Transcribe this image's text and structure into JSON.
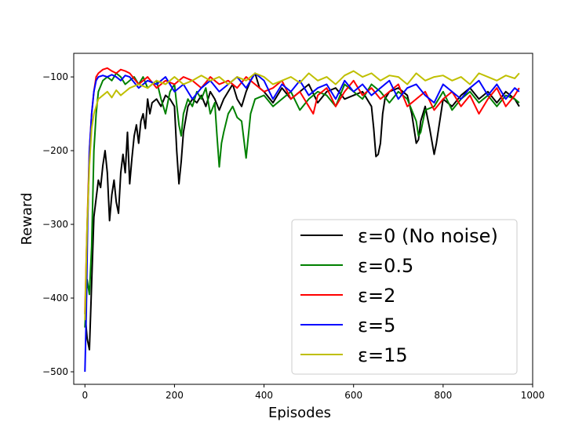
{
  "chart_data": {
    "type": "line",
    "title": "",
    "xlabel": "Episodes",
    "ylabel": "Reward",
    "xlim": [
      -25,
      1000
    ],
    "ylim": [
      -517,
      -68
    ],
    "x_ticks": [
      0,
      200,
      400,
      600,
      800,
      1000
    ],
    "x_tick_labels": [
      "0",
      "200",
      "400",
      "600",
      "800",
      "1000"
    ],
    "y_ticks": [
      -500,
      -400,
      -300,
      -200,
      -100
    ],
    "y_tick_labels": [
      "−500",
      "−400",
      "−300",
      "−200",
      "−100"
    ],
    "grid": false,
    "legend_position": "lower-right",
    "series": [
      {
        "name": "ε=0 (No noise)",
        "color": "#000000",
        "x": [
          0,
          5,
          10,
          15,
          20,
          25,
          30,
          35,
          40,
          45,
          50,
          55,
          60,
          65,
          70,
          75,
          80,
          85,
          90,
          95,
          100,
          105,
          110,
          115,
          120,
          125,
          130,
          135,
          140,
          145,
          150,
          160,
          170,
          180,
          190,
          200,
          205,
          210,
          215,
          220,
          230,
          240,
          250,
          260,
          270,
          280,
          290,
          300,
          310,
          320,
          330,
          340,
          350,
          360,
          370,
          380,
          390,
          400,
          420,
          440,
          460,
          480,
          500,
          520,
          540,
          560,
          580,
          600,
          620,
          640,
          645,
          650,
          655,
          660,
          665,
          670,
          680,
          700,
          720,
          730,
          740,
          745,
          750,
          760,
          770,
          780,
          785,
          790,
          800,
          820,
          840,
          860,
          880,
          900,
          920,
          940,
          960,
          970
        ],
        "values": [
          -420,
          -455,
          -470,
          -380,
          -290,
          -265,
          -240,
          -250,
          -220,
          -200,
          -230,
          -295,
          -260,
          -240,
          -270,
          -285,
          -230,
          -205,
          -230,
          -175,
          -245,
          -210,
          -180,
          -165,
          -190,
          -160,
          -150,
          -170,
          -130,
          -150,
          -135,
          -130,
          -140,
          -125,
          -130,
          -140,
          -200,
          -245,
          -215,
          -175,
          -140,
          -130,
          -135,
          -125,
          -140,
          -120,
          -130,
          -145,
          -130,
          -120,
          -110,
          -130,
          -140,
          -120,
          -105,
          -95,
          -115,
          -120,
          -135,
          -115,
          -130,
          -120,
          -110,
          -135,
          -120,
          -115,
          -130,
          -125,
          -120,
          -140,
          -170,
          -208,
          -205,
          -190,
          -150,
          -130,
          -120,
          -115,
          -125,
          -150,
          -190,
          -185,
          -160,
          -140,
          -170,
          -205,
          -190,
          -170,
          -130,
          -140,
          -125,
          -115,
          -130,
          -120,
          -135,
          -120,
          -130,
          -140
        ]
      },
      {
        "name": "ε=0.5",
        "color": "#008000",
        "x": [
          0,
          5,
          10,
          15,
          20,
          25,
          30,
          40,
          50,
          60,
          70,
          80,
          90,
          100,
          110,
          120,
          130,
          140,
          150,
          160,
          170,
          180,
          190,
          200,
          210,
          215,
          220,
          230,
          240,
          250,
          260,
          270,
          280,
          290,
          295,
          300,
          305,
          310,
          320,
          330,
          340,
          350,
          355,
          360,
          370,
          380,
          400,
          420,
          440,
          460,
          480,
          500,
          520,
          540,
          560,
          580,
          600,
          620,
          640,
          660,
          680,
          700,
          720,
          740,
          745,
          750,
          760,
          780,
          800,
          820,
          840,
          860,
          880,
          900,
          920,
          940,
          960,
          970
        ],
        "values": [
          -440,
          -375,
          -395,
          -330,
          -200,
          -150,
          -120,
          -105,
          -100,
          -105,
          -95,
          -100,
          -110,
          -105,
          -100,
          -110,
          -100,
          -115,
          -110,
          -105,
          -130,
          -150,
          -120,
          -110,
          -165,
          -180,
          -150,
          -130,
          -140,
          -120,
          -130,
          -115,
          -150,
          -135,
          -180,
          -222,
          -190,
          -175,
          -150,
          -140,
          -155,
          -160,
          -185,
          -210,
          -150,
          -130,
          -125,
          -140,
          -130,
          -120,
          -145,
          -130,
          -120,
          -125,
          -140,
          -110,
          -120,
          -130,
          -110,
          -120,
          -135,
          -120,
          -130,
          -160,
          -180,
          -175,
          -145,
          -140,
          -120,
          -145,
          -130,
          -120,
          -135,
          -125,
          -140,
          -125,
          -130,
          -135
        ]
      },
      {
        "name": "ε=2",
        "color": "#ff0000",
        "x": [
          0,
          5,
          10,
          15,
          20,
          25,
          30,
          40,
          50,
          60,
          70,
          80,
          90,
          100,
          120,
          140,
          160,
          180,
          200,
          220,
          240,
          260,
          280,
          300,
          320,
          340,
          360,
          380,
          400,
          420,
          440,
          460,
          480,
          500,
          510,
          520,
          540,
          560,
          580,
          600,
          620,
          640,
          660,
          680,
          700,
          720,
          740,
          760,
          780,
          800,
          820,
          840,
          860,
          880,
          900,
          920,
          940,
          960,
          970
        ],
        "values": [
          -420,
          -300,
          -200,
          -150,
          -120,
          -100,
          -95,
          -90,
          -88,
          -92,
          -95,
          -90,
          -92,
          -95,
          -110,
          -100,
          -115,
          -105,
          -110,
          -100,
          -105,
          -115,
          -100,
          -110,
          -105,
          -115,
          -100,
          -110,
          -120,
          -115,
          -105,
          -130,
          -120,
          -140,
          -150,
          -125,
          -115,
          -140,
          -120,
          -105,
          -125,
          -115,
          -130,
          -120,
          -110,
          -140,
          -130,
          -120,
          -145,
          -130,
          -120,
          -140,
          -125,
          -150,
          -130,
          -115,
          -140,
          -125,
          -115
        ]
      },
      {
        "name": "ε=5",
        "color": "#0000ff",
        "x": [
          0,
          3,
          6,
          10,
          15,
          20,
          25,
          30,
          40,
          50,
          60,
          70,
          80,
          90,
          100,
          120,
          140,
          160,
          180,
          200,
          220,
          240,
          260,
          280,
          300,
          320,
          340,
          360,
          380,
          400,
          420,
          440,
          460,
          480,
          500,
          520,
          540,
          560,
          580,
          600,
          620,
          640,
          660,
          680,
          700,
          720,
          740,
          760,
          780,
          800,
          820,
          840,
          860,
          880,
          900,
          920,
          940,
          960,
          970
        ],
        "values": [
          -500,
          -420,
          -300,
          -200,
          -150,
          -120,
          -105,
          -100,
          -98,
          -100,
          -97,
          -100,
          -105,
          -98,
          -100,
          -115,
          -105,
          -110,
          -100,
          -120,
          -110,
          -130,
          -115,
          -105,
          -120,
          -110,
          -100,
          -115,
          -95,
          -105,
          -130,
          -110,
          -120,
          -105,
          -125,
          -115,
          -110,
          -130,
          -105,
          -120,
          -110,
          -125,
          -115,
          -105,
          -130,
          -115,
          -110,
          -125,
          -135,
          -110,
          -120,
          -130,
          -115,
          -105,
          -125,
          -110,
          -130,
          -115,
          -120
        ]
      },
      {
        "name": "ε=15",
        "color": "#bfbf00",
        "x": [
          0,
          5,
          10,
          15,
          20,
          25,
          30,
          40,
          50,
          60,
          70,
          80,
          90,
          100,
          120,
          140,
          160,
          180,
          200,
          220,
          240,
          260,
          280,
          300,
          320,
          340,
          360,
          380,
          400,
          420,
          440,
          460,
          480,
          500,
          520,
          540,
          560,
          580,
          600,
          620,
          640,
          660,
          680,
          700,
          720,
          740,
          760,
          780,
          800,
          820,
          840,
          860,
          880,
          900,
          920,
          940,
          960,
          970
        ],
        "values": [
          -430,
          -300,
          -220,
          -170,
          -150,
          -140,
          -130,
          -125,
          -120,
          -128,
          -118,
          -125,
          -120,
          -115,
          -110,
          -115,
          -105,
          -110,
          -100,
          -110,
          -105,
          -98,
          -105,
          -100,
          -110,
          -100,
          -105,
          -95,
          -100,
          -110,
          -105,
          -100,
          -108,
          -95,
          -105,
          -100,
          -110,
          -98,
          -92,
          -100,
          -95,
          -105,
          -98,
          -100,
          -110,
          -95,
          -105,
          -100,
          -98,
          -105,
          -100,
          -110,
          -95,
          -100,
          -105,
          -98,
          -102,
          -95
        ]
      }
    ]
  }
}
